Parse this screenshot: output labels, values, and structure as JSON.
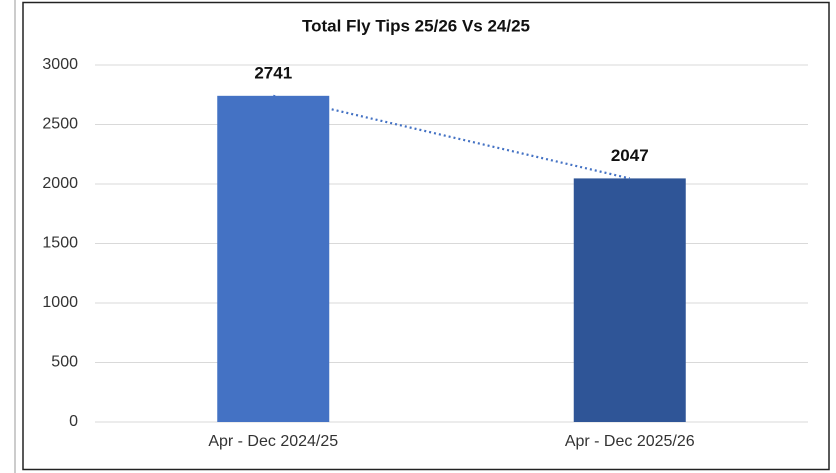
{
  "chart_data": {
    "type": "bar",
    "title": "Total Fly Tips 25/26 Vs 24/25",
    "categories": [
      "Apr - Dec 2024/25",
      "Apr - Dec 2025/26"
    ],
    "values": [
      2741,
      2047
    ],
    "colors": [
      "#4472c4",
      "#2f5597"
    ],
    "trendline_color": "#4472c4",
    "ylim": [
      0,
      3000
    ],
    "yticks": [
      0,
      500,
      1000,
      1500,
      2000,
      2500,
      3000
    ],
    "grid": true
  }
}
